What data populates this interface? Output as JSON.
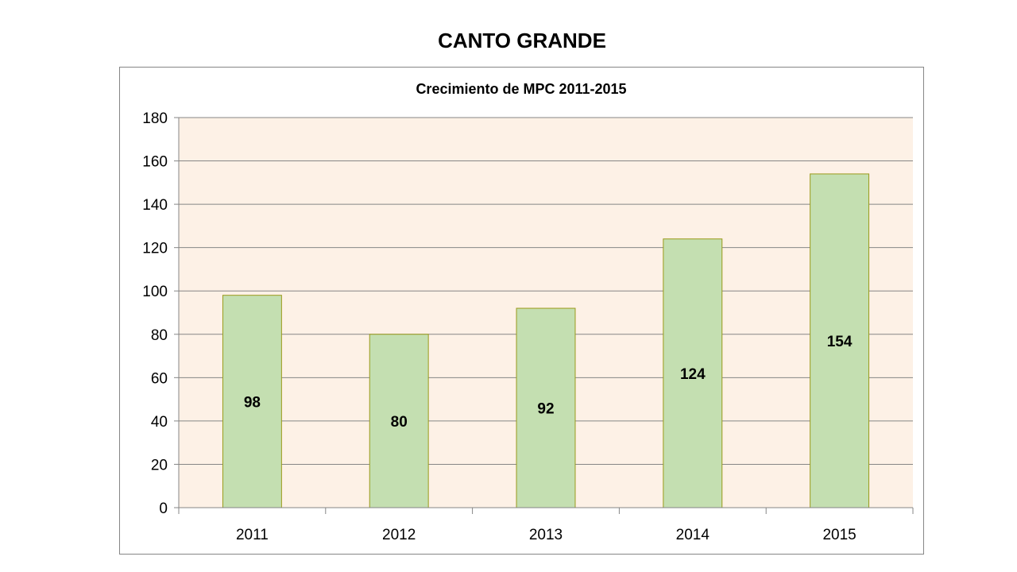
{
  "page": {
    "title": "CANTO GRANDE"
  },
  "chart_data": {
    "type": "bar",
    "title": "Crecimiento de MPC 2011-2015",
    "categories": [
      "2011",
      "2012",
      "2013",
      "2014",
      "2015"
    ],
    "values": [
      98,
      80,
      92,
      124,
      154
    ],
    "data_labels": [
      "98",
      "80",
      "92",
      "124",
      "154"
    ],
    "xlabel": "",
    "ylabel": "",
    "ylim": [
      0,
      180
    ],
    "yticks": [
      0,
      20,
      40,
      60,
      80,
      100,
      120,
      140,
      160,
      180
    ],
    "grid": true,
    "legend": "none",
    "colors": {
      "bar_fill": "#c4dfb1",
      "bar_border": "#9a9a1a",
      "plot_background": "#fdf1e6",
      "gridline": "#868686"
    }
  }
}
